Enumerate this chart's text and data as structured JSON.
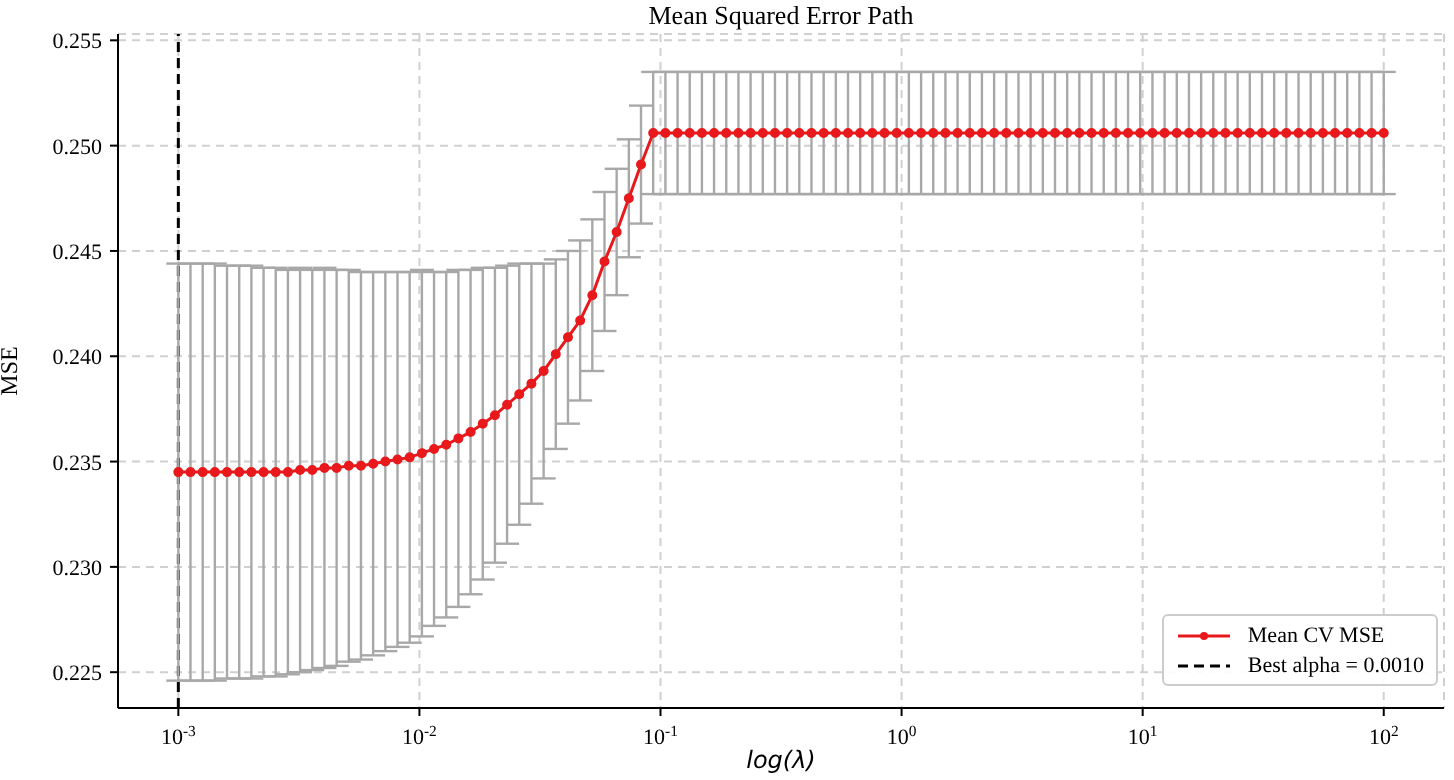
{
  "chart_data": {
    "type": "line",
    "title": "Mean Squared Error Path",
    "xlabel": "log(λ)",
    "ylabel": "MSE",
    "log": "x",
    "grid": true,
    "legend": "bottom right",
    "marker": "circle",
    "line_style": "solid",
    "xlim": [
      0.000562,
      177.8
    ],
    "xticks": [
      {
        "value": 0.001,
        "label": "10$^{-3}$"
      },
      {
        "value": 0.01,
        "label": "10$^{-2}$"
      },
      {
        "value": 0.1,
        "label": "10$^{-1}$"
      },
      {
        "value": 1,
        "label": "10$^{0}$"
      },
      {
        "value": 10,
        "label": "10$^{1}$"
      },
      {
        "value": 100,
        "label": "10$^{2}$"
      }
    ],
    "ylim": [
      0.2233,
      0.2553
    ],
    "yticks": [
      0.225,
      {
        "value": 0.23,
        "label": "0.230"
      },
      0.235,
      {
        "value": 0.24,
        "label": "0.240"
      },
      0.245,
      {
        "value": 0.25,
        "label": "0.250"
      },
      0.255
    ],
    "x": [
      0.001,
      0.001123,
      0.001262,
      0.001417,
      0.001592,
      0.001789,
      0.002009,
      0.002257,
      0.002535,
      0.002848,
      0.003199,
      0.003594,
      0.004037,
      0.004535,
      0.005094,
      0.005722,
      0.006428,
      0.007221,
      0.008111,
      0.009112,
      0.01024,
      0.0115,
      0.01292,
      0.01451,
      0.0163,
      0.01831,
      0.02057,
      0.0231,
      0.02595,
      0.02915,
      0.03275,
      0.03678,
      0.04132,
      0.04642,
      0.05214,
      0.05857,
      0.06579,
      0.07391,
      0.08302,
      0.09326,
      0.1048,
      0.1177,
      0.1322,
      0.1485,
      0.1668,
      0.1874,
      0.2105,
      0.2364,
      0.2656,
      0.2984,
      0.3352,
      0.3765,
      0.4229,
      0.4751,
      0.5337,
      0.5995,
      0.6734,
      0.7565,
      0.8498,
      0.9545,
      1.072,
      1.205,
      1.353,
      1.52,
      1.707,
      1.918,
      2.154,
      2.42,
      2.719,
      3.054,
      3.43,
      3.853,
      4.329,
      4.863,
      5.462,
      6.136,
      6.893,
      7.743,
      8.697,
      9.77,
      10.98,
      12.33,
      13.85,
      15.56,
      17.48,
      19.63,
      22.05,
      24.77,
      27.83,
      31.26,
      35.11,
      39.44,
      44.31,
      49.77,
      55.91,
      62.8,
      70.55,
      79.25,
      89.02,
      100
    ],
    "series": [
      {
        "name": "Mean CV MSE",
        "color": "#e8191c",
        "values": [
          0.2345,
          0.2345,
          0.2345,
          0.2345,
          0.2345,
          0.2345,
          0.2345,
          0.2345,
          0.2345,
          0.2345,
          0.2346,
          0.2346,
          0.2347,
          0.2347,
          0.2348,
          0.2348,
          0.2349,
          0.235,
          0.2351,
          0.2352,
          0.2354,
          0.2356,
          0.2358,
          0.2361,
          0.2364,
          0.2368,
          0.2372,
          0.2377,
          0.2382,
          0.2387,
          0.2393,
          0.2401,
          0.2409,
          0.2417,
          0.2429,
          0.2445,
          0.2459,
          0.2475,
          0.2491,
          0.2506,
          0.2506,
          0.2506,
          0.2506,
          0.2506,
          0.2506,
          0.2506,
          0.2506,
          0.2506,
          0.2506,
          0.2506,
          0.2506,
          0.2506,
          0.2506,
          0.2506,
          0.2506,
          0.2506,
          0.2506,
          0.2506,
          0.2506,
          0.2506,
          0.2506,
          0.2506,
          0.2506,
          0.2506,
          0.2506,
          0.2506,
          0.2506,
          0.2506,
          0.2506,
          0.2506,
          0.2506,
          0.2506,
          0.2506,
          0.2506,
          0.2506,
          0.2506,
          0.2506,
          0.2506,
          0.2506,
          0.2506,
          0.2506,
          0.2506,
          0.2506,
          0.2506,
          0.2506,
          0.2506,
          0.2506,
          0.2506,
          0.2506,
          0.2506,
          0.2506,
          0.2506,
          0.2506,
          0.2506,
          0.2506,
          0.2506,
          0.2506,
          0.2506,
          0.2506,
          0.2506
        ],
        "errors": [
          0.0099,
          0.0099,
          0.0099,
          0.0099,
          0.0098,
          0.0098,
          0.0098,
          0.0097,
          0.0097,
          0.0096,
          0.0096,
          0.0095,
          0.0095,
          0.0094,
          0.0093,
          0.0092,
          0.0091,
          0.009,
          0.0089,
          0.0088,
          0.0087,
          0.0084,
          0.0082,
          0.008,
          0.0077,
          0.0074,
          0.007,
          0.0066,
          0.0062,
          0.0057,
          0.0051,
          0.0045,
          0.0041,
          0.0038,
          0.0036,
          0.0033,
          0.003,
          0.0028,
          0.0028,
          0.0029,
          0.0029,
          0.0029,
          0.0029,
          0.0029,
          0.0029,
          0.0029,
          0.0029,
          0.0029,
          0.0029,
          0.0029,
          0.0029,
          0.0029,
          0.0029,
          0.0029,
          0.0029,
          0.0029,
          0.0029,
          0.0029,
          0.0029,
          0.0029,
          0.0029,
          0.0029,
          0.0029,
          0.0029,
          0.0029,
          0.0029,
          0.0029,
          0.0029,
          0.0029,
          0.0029,
          0.0029,
          0.0029,
          0.0029,
          0.0029,
          0.0029,
          0.0029,
          0.0029,
          0.0029,
          0.0029,
          0.0029,
          0.0029,
          0.0029,
          0.0029,
          0.0029,
          0.0029,
          0.0029,
          0.0029,
          0.0029,
          0.0029,
          0.0029,
          0.0029,
          0.0029,
          0.0029,
          0.0029,
          0.0029,
          0.0029,
          0.0029,
          0.0029,
          0.0029,
          0.0029
        ]
      }
    ],
    "ref_lines": [
      {
        "axis": "x",
        "value": 0.001,
        "label": "Best alpha = 0.0010",
        "color": "#000000",
        "line_style": "dashed"
      }
    ]
  }
}
